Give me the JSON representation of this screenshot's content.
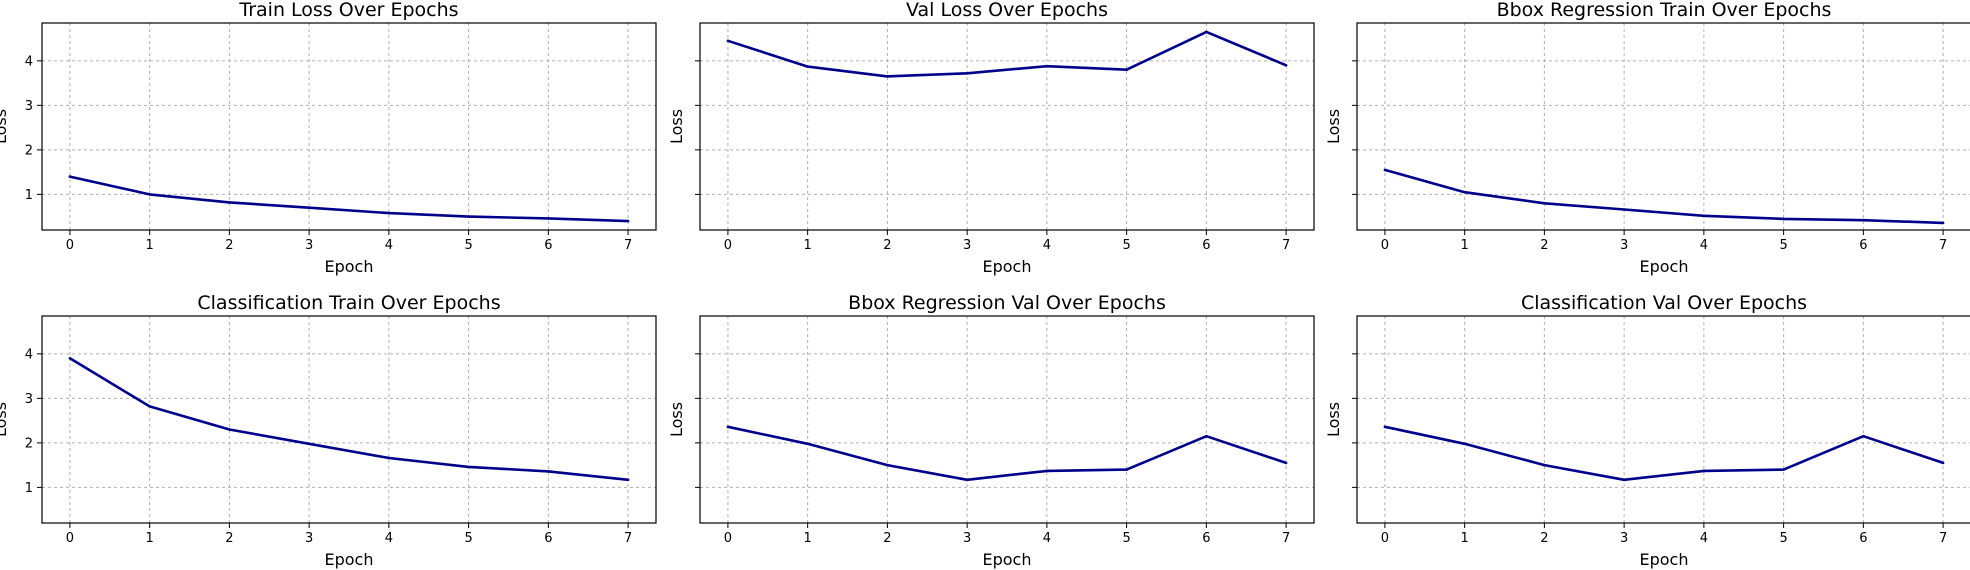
{
  "colors": {
    "line": "#00008b"
  },
  "chart_data": [
    {
      "type": "line",
      "title": "Train Loss Over Epochs",
      "xlabel": "Epoch",
      "ylabel": "Loss",
      "x": [
        0,
        1,
        2,
        3,
        4,
        5,
        6,
        7
      ],
      "values": [
        1.4,
        1.0,
        0.82,
        0.7,
        0.58,
        0.5,
        0.46,
        0.4
      ],
      "xlim": [
        -0.35,
        7.35
      ],
      "ylim": [
        0.2,
        4.85
      ],
      "xticks": [
        "0",
        "1",
        "2",
        "3",
        "4",
        "5",
        "6",
        "7"
      ],
      "yticks": [
        1,
        2,
        3,
        4
      ],
      "grid": true
    },
    {
      "type": "line",
      "title": "Val Loss Over Epochs",
      "xlabel": "Epoch",
      "ylabel": "Loss",
      "x": [
        0,
        1,
        2,
        3,
        4,
        5,
        6,
        7
      ],
      "values": [
        4.45,
        3.87,
        3.65,
        3.72,
        3.88,
        3.8,
        4.65,
        3.9
      ],
      "xlim": [
        -0.35,
        7.35
      ],
      "ylim": [
        0.2,
        4.85
      ],
      "xticks": [
        "0",
        "1",
        "2",
        "3",
        "4",
        "5",
        "6",
        "7"
      ],
      "yticks": [
        1,
        2,
        3,
        4
      ],
      "grid": true
    },
    {
      "type": "line",
      "title": "Bbox Regression Train Over Epochs",
      "xlabel": "Epoch",
      "ylabel": "Loss",
      "x": [
        0,
        1,
        2,
        3,
        4,
        5,
        6,
        7
      ],
      "values": [
        1.55,
        1.05,
        0.8,
        0.66,
        0.52,
        0.45,
        0.42,
        0.36
      ],
      "xlim": [
        -0.35,
        7.35
      ],
      "ylim": [
        0.2,
        4.85
      ],
      "xticks": [
        "0",
        "1",
        "2",
        "3",
        "4",
        "5",
        "6",
        "7"
      ],
      "yticks": [
        1,
        2,
        3,
        4
      ],
      "grid": true
    },
    {
      "type": "line",
      "title": "Classification Train Over Epochs",
      "xlabel": "Epoch",
      "ylabel": "Loss",
      "x": [
        0,
        1,
        2,
        3,
        4,
        5,
        6,
        7
      ],
      "values": [
        3.9,
        2.82,
        2.3,
        1.98,
        1.66,
        1.46,
        1.36,
        1.17
      ],
      "xlim": [
        -0.35,
        7.35
      ],
      "ylim": [
        0.2,
        4.85
      ],
      "xticks": [
        "0",
        "1",
        "2",
        "3",
        "4",
        "5",
        "6",
        "7"
      ],
      "yticks": [
        1,
        2,
        3,
        4
      ],
      "grid": true
    },
    {
      "type": "line",
      "title": "Bbox Regression Val Over Epochs",
      "xlabel": "Epoch",
      "ylabel": "Loss",
      "x": [
        0,
        1,
        2,
        3,
        4,
        5,
        6,
        7
      ],
      "values": [
        2.36,
        1.98,
        1.5,
        1.17,
        1.37,
        1.4,
        2.15,
        1.55
      ],
      "xlim": [
        -0.35,
        7.35
      ],
      "ylim": [
        0.2,
        4.85
      ],
      "xticks": [
        "0",
        "1",
        "2",
        "3",
        "4",
        "5",
        "6",
        "7"
      ],
      "yticks": [
        1,
        2,
        3,
        4
      ],
      "grid": true
    },
    {
      "type": "line",
      "title": "Classification Val Over Epochs",
      "xlabel": "Epoch",
      "ylabel": "Loss",
      "x": [
        0,
        1,
        2,
        3,
        4,
        5,
        6,
        7
      ],
      "values": [
        2.36,
        1.98,
        1.5,
        1.17,
        1.37,
        1.4,
        2.15,
        1.55
      ],
      "xlim": [
        -0.35,
        7.35
      ],
      "ylim": [
        0.2,
        4.85
      ],
      "xticks": [
        "0",
        "1",
        "2",
        "3",
        "4",
        "5",
        "6",
        "7"
      ],
      "yticks": [
        1,
        2,
        3,
        4
      ],
      "grid": true
    }
  ]
}
